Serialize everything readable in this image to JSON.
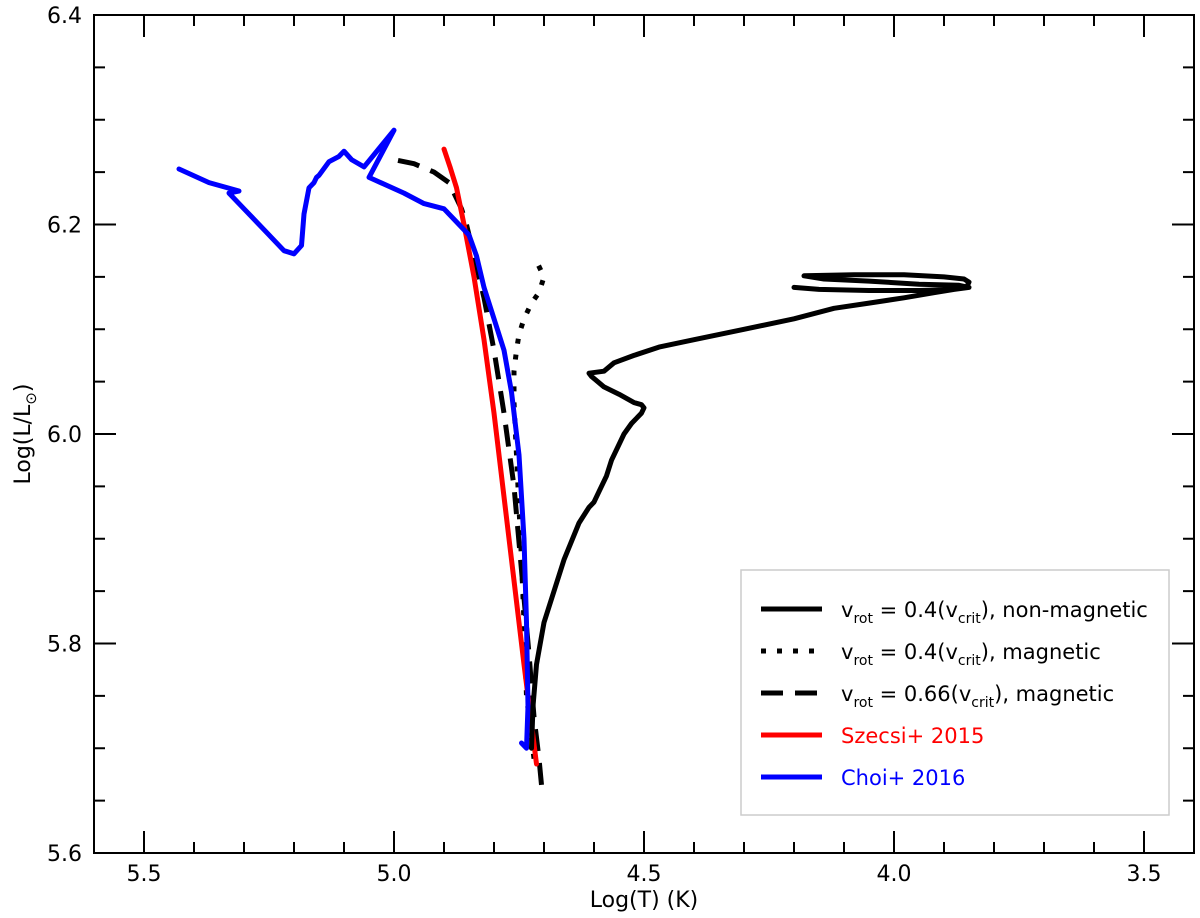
{
  "chart_data": {
    "type": "line",
    "title": "",
    "xlabel": "Log(T) (K)",
    "ylabel": {
      "base": "Log(L/L",
      "subscript": "⊙",
      "close": ")"
    },
    "xlim": [
      5.6,
      3.4
    ],
    "ylim": [
      5.6,
      6.4
    ],
    "x_reversed": true,
    "grid": false,
    "legend_position": "lower-right",
    "x_ticks": [
      {
        "value": 5.5,
        "label": "5.5"
      },
      {
        "value": 5.0,
        "label": "5.0"
      },
      {
        "value": 4.5,
        "label": "4.5"
      },
      {
        "value": 4.0,
        "label": "4.0"
      },
      {
        "value": 3.5,
        "label": "3.5"
      }
    ],
    "y_ticks": [
      {
        "value": 5.6,
        "label": "5.6"
      },
      {
        "value": 5.8,
        "label": "5.8"
      },
      {
        "value": 6.0,
        "label": "6.0"
      },
      {
        "value": 6.2,
        "label": "6.2"
      },
      {
        "value": 6.4,
        "label": "6.4"
      }
    ],
    "series": [
      {
        "key": "nonmag04",
        "name": {
          "v": "v",
          "sub": "rot",
          "text": " = 0.4(v",
          "sub2": "crit",
          "tail": "), non-magnetic"
        },
        "color": "#000000",
        "style": "solid",
        "x": [
          4.725,
          4.722,
          4.715,
          4.7,
          4.68,
          4.66,
          4.63,
          4.61,
          4.6,
          4.59,
          4.575,
          4.565,
          4.55,
          4.54,
          4.525,
          4.515,
          4.505,
          4.5,
          4.505,
          4.52,
          4.55,
          4.58,
          4.605,
          4.61,
          4.58,
          4.56,
          4.52,
          4.47,
          4.4,
          4.3,
          4.2,
          4.12,
          4.05,
          3.98,
          3.92,
          3.88,
          3.855,
          3.85,
          3.86,
          3.9,
          3.98,
          4.08,
          4.18,
          4.14,
          4.05,
          3.95,
          3.87,
          3.85,
          3.88,
          3.95,
          4.05,
          4.15,
          4.2
        ],
        "y": [
          5.7,
          5.74,
          5.78,
          5.82,
          5.85,
          5.88,
          5.915,
          5.93,
          5.935,
          5.945,
          5.96,
          5.975,
          5.99,
          6.0,
          6.01,
          6.015,
          6.02,
          6.025,
          6.028,
          6.03,
          6.038,
          6.045,
          6.055,
          6.058,
          6.06,
          6.068,
          6.075,
          6.083,
          6.09,
          6.1,
          6.11,
          6.12,
          6.125,
          6.13,
          6.135,
          6.138,
          6.14,
          6.145,
          6.148,
          6.15,
          6.152,
          6.152,
          6.151,
          6.148,
          6.146,
          6.143,
          6.142,
          6.14,
          6.138,
          6.137,
          6.137,
          6.138,
          6.14
        ]
      },
      {
        "key": "mag04",
        "name": {
          "v": "v",
          "sub": "rot",
          "text": " = 0.4(v",
          "sub2": "crit",
          "tail": "), magnetic"
        },
        "color": "#000000",
        "style": "dotted",
        "x": [
          4.72,
          4.735,
          4.74,
          4.745,
          4.75,
          4.755,
          4.76,
          4.76,
          4.755,
          4.75,
          4.74,
          4.725,
          4.71,
          4.7,
          4.71,
          4.72
        ],
        "y": [
          5.69,
          5.75,
          5.82,
          5.88,
          5.93,
          5.98,
          6.03,
          6.06,
          6.08,
          6.095,
          6.11,
          6.125,
          6.135,
          6.15,
          6.16,
          6.17
        ]
      },
      {
        "key": "mag066",
        "name": {
          "v": "v",
          "sub": "rot",
          "text": " = 0.66(v",
          "sub2": "crit",
          "tail": "), magnetic"
        },
        "color": "#000000",
        "style": "dashed",
        "x": [
          4.705,
          4.71,
          4.72,
          4.73,
          4.745,
          4.76,
          4.78,
          4.8,
          4.82,
          4.84,
          4.855,
          4.865,
          4.875,
          4.89,
          4.92,
          4.96,
          5.0
        ],
        "y": [
          5.665,
          5.69,
          5.73,
          5.79,
          5.87,
          5.95,
          6.02,
          6.08,
          6.13,
          6.17,
          6.2,
          6.215,
          6.225,
          6.24,
          6.25,
          6.258,
          6.262
        ]
      },
      {
        "key": "szecsi",
        "name": {
          "text": "Szecsi+ 2015"
        },
        "color": "#ff0000",
        "style": "solid",
        "x": [
          4.715,
          4.74,
          4.76,
          4.78,
          4.8,
          4.82,
          4.84,
          4.86,
          4.875,
          4.888,
          4.9
        ],
        "y": [
          5.685,
          5.78,
          5.86,
          5.94,
          6.02,
          6.09,
          6.15,
          6.2,
          6.235,
          6.255,
          6.272
        ]
      },
      {
        "key": "choi",
        "name": {
          "text": "Choi+ 2016"
        },
        "color": "#0000ff",
        "style": "solid",
        "x": [
          4.745,
          4.735,
          4.732,
          4.735,
          4.74,
          4.75,
          4.765,
          4.78,
          4.8,
          4.82,
          4.835,
          4.85,
          4.87,
          4.9,
          4.94,
          4.98,
          5.05,
          5.0,
          5.06,
          5.085,
          5.1,
          5.11,
          5.13,
          5.15,
          5.155,
          5.16,
          5.17,
          5.18,
          5.185,
          5.2,
          5.22,
          5.26,
          5.3,
          5.33,
          5.31,
          5.37,
          5.43
        ],
        "y": [
          5.705,
          5.7,
          5.74,
          5.82,
          5.9,
          5.98,
          6.04,
          6.08,
          6.11,
          6.14,
          6.17,
          6.19,
          6.2,
          6.215,
          6.22,
          6.23,
          6.245,
          6.29,
          6.255,
          6.262,
          6.27,
          6.265,
          6.26,
          6.247,
          6.245,
          6.24,
          6.235,
          6.21,
          6.18,
          6.172,
          6.175,
          6.195,
          6.215,
          6.23,
          6.232,
          6.24,
          6.253
        ]
      }
    ]
  }
}
